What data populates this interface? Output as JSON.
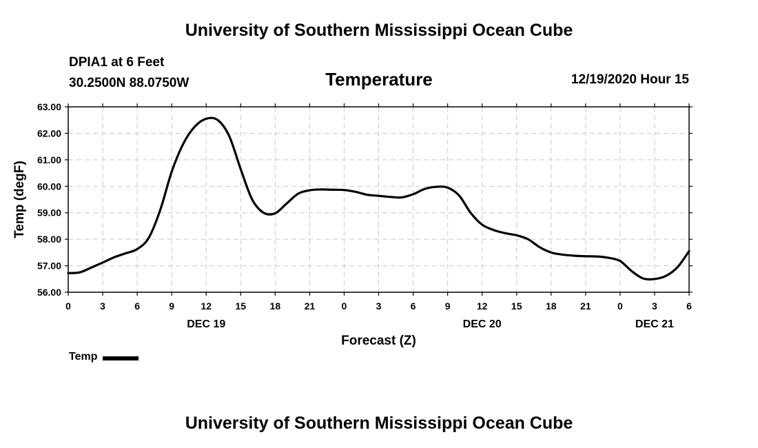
{
  "page": {
    "header_title": "University of Southern Mississippi Ocean Cube",
    "footer_title": "University of Southern Mississippi Ocean Cube",
    "station_name": "DPIA1 at 6 Feet",
    "station_coords": "30.2500N 88.0750W",
    "panel_title": "Temperature",
    "datetime": "12/19/2020 Hour 15"
  },
  "chart_data": {
    "type": "line",
    "title": "Temperature",
    "xlabel": "Forecast (Z)",
    "ylabel": "Temp (degF)",
    "xlim": [
      0,
      54
    ],
    "ylim": [
      56,
      63
    ],
    "grid": true,
    "yticks": [
      56,
      57,
      58,
      59,
      60,
      61,
      62,
      63
    ],
    "ytick_labels": [
      "56.00",
      "57.00",
      "58.00",
      "59.00",
      "60.00",
      "61.00",
      "62.00",
      "63.00"
    ],
    "xticks": [
      0,
      3,
      6,
      9,
      12,
      15,
      18,
      21,
      24,
      27,
      30,
      33,
      36,
      39,
      42,
      45,
      48,
      51,
      54
    ],
    "xtick_labels": [
      "0",
      "3",
      "6",
      "9",
      "12",
      "15",
      "18",
      "21",
      "0",
      "3",
      "6",
      "9",
      "12",
      "15",
      "18",
      "21",
      "0",
      "3",
      "6"
    ],
    "date_labels": [
      {
        "x": 12,
        "label": "DEC 19"
      },
      {
        "x": 36,
        "label": "DEC 20"
      },
      {
        "x": 51,
        "label": "DEC 21"
      }
    ],
    "legend": {
      "label": "Temp",
      "placement": "bottom-left"
    },
    "series": [
      {
        "name": "Temp",
        "color": "#000000",
        "x": [
          0,
          1,
          2,
          3,
          4,
          5,
          6,
          7,
          8,
          9,
          10,
          11,
          12,
          13,
          14,
          15,
          16,
          17,
          18,
          19,
          20,
          21,
          22,
          23,
          24,
          25,
          26,
          27,
          28,
          29,
          30,
          31,
          32,
          33,
          34,
          35,
          36,
          37,
          38,
          39,
          40,
          41,
          42,
          43,
          44,
          45,
          46,
          47,
          48,
          49,
          50,
          51,
          52,
          53,
          54
        ],
        "values": [
          56.72,
          56.75,
          56.93,
          57.12,
          57.32,
          57.47,
          57.63,
          58.05,
          59.1,
          60.55,
          61.6,
          62.25,
          62.55,
          62.5,
          61.9,
          60.65,
          59.5,
          59.0,
          58.98,
          59.35,
          59.72,
          59.85,
          59.88,
          59.87,
          59.86,
          59.79,
          59.68,
          59.64,
          59.6,
          59.58,
          59.7,
          59.9,
          59.98,
          59.95,
          59.65,
          59.0,
          58.55,
          58.35,
          58.23,
          58.15,
          58.0,
          57.7,
          57.5,
          57.42,
          57.38,
          57.36,
          57.35,
          57.3,
          57.18,
          56.8,
          56.52,
          56.5,
          56.62,
          56.95,
          57.55
        ]
      }
    ]
  }
}
